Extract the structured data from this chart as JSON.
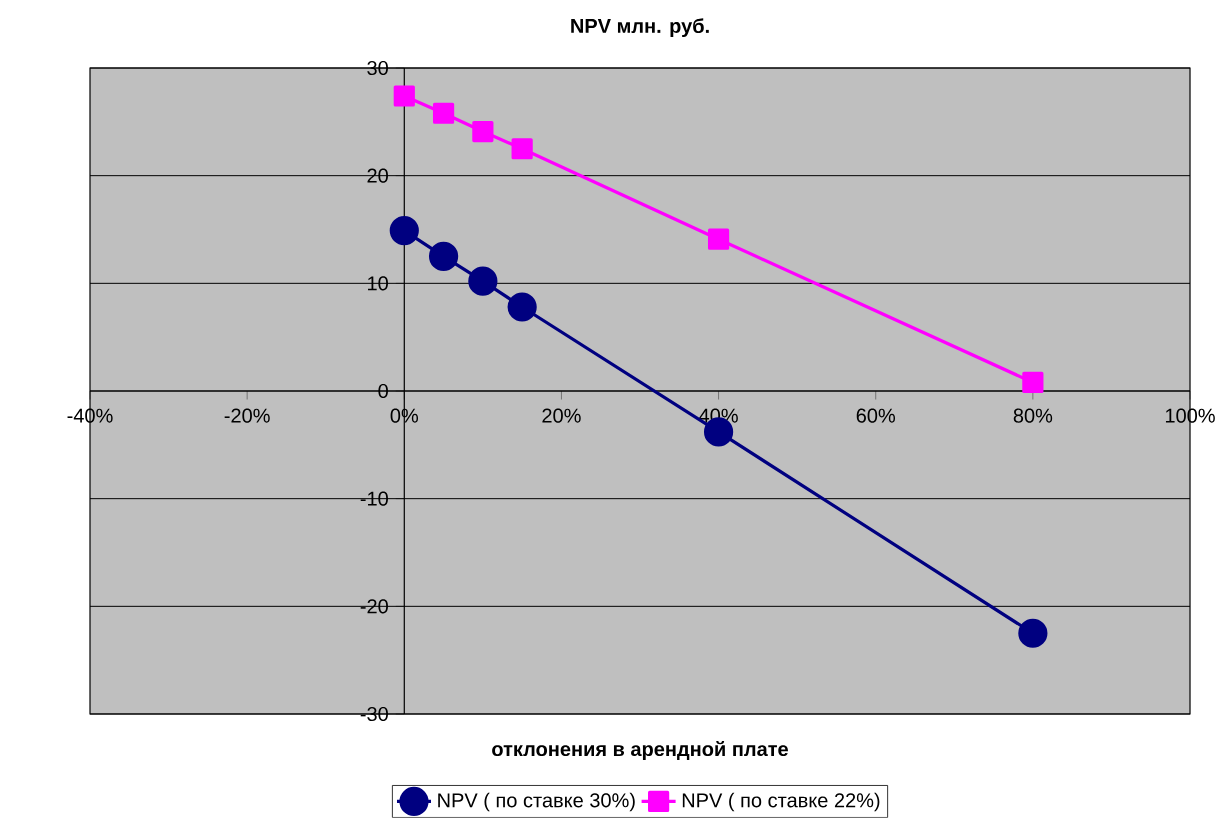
{
  "chart_data": {
    "type": "line",
    "title": "NPV млн. руб.",
    "xlabel": "отклонения в арендной плате",
    "x": [
      0,
      5,
      10,
      15,
      40,
      80
    ],
    "series": [
      {
        "name": "NPV ( по ставке 30%)",
        "color": "#000080",
        "marker": "circle",
        "values": [
          14.9,
          12.5,
          10.2,
          7.8,
          -3.8,
          -22.5
        ]
      },
      {
        "name": "NPV ( по ставке 22%)",
        "color": "#ff00ff",
        "marker": "square",
        "values": [
          27.4,
          25.8,
          24.1,
          22.5,
          14.1,
          0.8
        ]
      }
    ],
    "xlim": [
      -40,
      100
    ],
    "xticks": [
      {
        "value": -40,
        "label": "-40%"
      },
      {
        "value": -20,
        "label": "-20%"
      },
      {
        "value": 0,
        "label": "0%"
      },
      {
        "value": 20,
        "label": "20%"
      },
      {
        "value": 40,
        "label": "40%"
      },
      {
        "value": 60,
        "label": "60%"
      },
      {
        "value": 80,
        "label": "80%"
      },
      {
        "value": 100,
        "label": "100%"
      }
    ],
    "ylim": [
      -30,
      30
    ],
    "yticks": [
      -30,
      -20,
      -10,
      0,
      10,
      20,
      30
    ],
    "grid": "y",
    "legend": "bottom",
    "line_style": "solid"
  }
}
